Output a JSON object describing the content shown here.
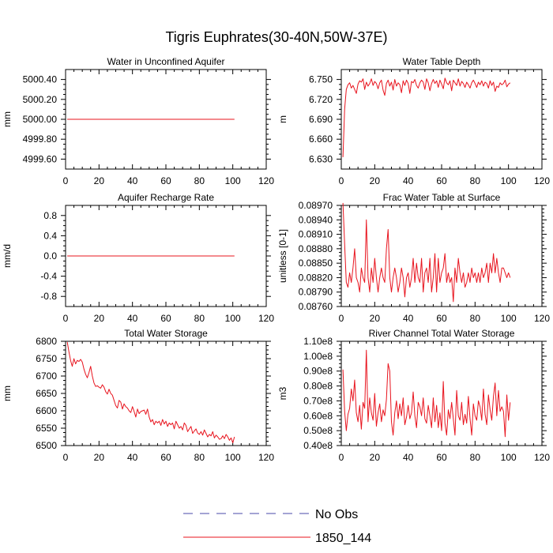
{
  "figure": {
    "title": "Tigris Euphrates(30-40N,50W-37E)"
  },
  "legend": {
    "entries": [
      {
        "label": "No Obs",
        "color": "#4a4aa8",
        "style": "dashed"
      },
      {
        "label": "1850_144",
        "color": "#e8141e",
        "style": "solid"
      }
    ]
  },
  "chart_data": [
    {
      "type": "line",
      "title": "Water in Unconfined Aquifer",
      "ylabel": "mm",
      "xlim": [
        0,
        120
      ],
      "xticks": [
        "0",
        "20",
        "40",
        "60",
        "80",
        "100",
        "120"
      ],
      "ylim": [
        4999.5,
        5000.5
      ],
      "yticks": [
        4999.6,
        4999.8,
        5000.0,
        5000.2,
        5000.4
      ],
      "ytick_labels": [
        "4999.60",
        "4999.80",
        "5000.00",
        "5000.20",
        "5000.40"
      ],
      "series": [
        {
          "x_start": 1,
          "values": [
            5000,
            5000,
            5000,
            5000,
            5000,
            5000,
            5000,
            5000,
            5000,
            5000,
            5000,
            5000,
            5000,
            5000,
            5000,
            5000,
            5000,
            5000,
            5000,
            5000,
            5000,
            5000,
            5000,
            5000,
            5000,
            5000,
            5000,
            5000,
            5000,
            5000,
            5000,
            5000,
            5000,
            5000,
            5000,
            5000,
            5000,
            5000,
            5000,
            5000,
            5000,
            5000,
            5000,
            5000,
            5000,
            5000,
            5000,
            5000,
            5000,
            5000,
            5000,
            5000,
            5000,
            5000,
            5000,
            5000,
            5000,
            5000,
            5000,
            5000,
            5000,
            5000,
            5000,
            5000,
            5000,
            5000,
            5000,
            5000,
            5000,
            5000,
            5000,
            5000,
            5000,
            5000,
            5000,
            5000,
            5000,
            5000,
            5000,
            5000,
            5000,
            5000,
            5000,
            5000,
            5000,
            5000,
            5000,
            5000,
            5000,
            5000,
            5000,
            5000,
            5000,
            5000,
            5000,
            5000,
            5000,
            5000,
            5000,
            5000,
            5000
          ]
        }
      ]
    },
    {
      "type": "line",
      "title": "Water Table Depth",
      "ylabel": "m",
      "xlim": [
        0,
        120
      ],
      "xticks": [
        "0",
        "20",
        "40",
        "60",
        "80",
        "100",
        "120"
      ],
      "ylim": [
        6.615,
        6.765
      ],
      "yticks": [
        6.63,
        6.66,
        6.69,
        6.72,
        6.75
      ],
      "ytick_labels": [
        "6.630",
        "6.660",
        "6.690",
        "6.720",
        "6.750"
      ],
      "series": [
        {
          "x_start": 1,
          "values": [
            6.633,
            6.705,
            6.735,
            6.742,
            6.745,
            6.737,
            6.741,
            6.735,
            6.729,
            6.743,
            6.748,
            6.746,
            6.751,
            6.735,
            6.746,
            6.74,
            6.744,
            6.751,
            6.741,
            6.747,
            6.744,
            6.736,
            6.745,
            6.749,
            6.734,
            6.726,
            6.744,
            6.749,
            6.74,
            6.746,
            6.734,
            6.75,
            6.74,
            6.745,
            6.742,
            6.73,
            6.748,
            6.741,
            6.749,
            6.744,
            6.729,
            6.747,
            6.745,
            6.75,
            6.741,
            6.737,
            6.745,
            6.749,
            6.746,
            6.735,
            6.751,
            6.745,
            6.733,
            6.744,
            6.75,
            6.744,
            6.748,
            6.738,
            6.749,
            6.743,
            6.736,
            6.752,
            6.745,
            6.742,
            6.748,
            6.733,
            6.749,
            6.745,
            6.741,
            6.751,
            6.74,
            6.747,
            6.744,
            6.738,
            6.746,
            6.742,
            6.737,
            6.745,
            6.749,
            6.744,
            6.738,
            6.746,
            6.742,
            6.748,
            6.74,
            6.746,
            6.744,
            6.737,
            6.748,
            6.741,
            6.746,
            6.732,
            6.74,
            6.738,
            6.745,
            6.742,
            6.744,
            6.749,
            6.739,
            6.743,
            6.745
          ]
        }
      ]
    },
    {
      "type": "line",
      "title": "Aquifer Recharge Rate",
      "ylabel": "mm/d",
      "xlim": [
        0,
        120
      ],
      "xticks": [
        "0",
        "20",
        "40",
        "60",
        "80",
        "100",
        "120"
      ],
      "ylim": [
        -1.0,
        1.0
      ],
      "yticks": [
        -0.8,
        -0.4,
        0.0,
        0.4,
        0.8
      ],
      "ytick_labels": [
        "-0.8",
        "-0.4",
        "0.0",
        "0.4",
        "0.8"
      ],
      "series": [
        {
          "x_start": 1,
          "values": [
            0,
            0,
            0,
            0,
            0,
            0,
            0,
            0,
            0,
            0,
            0,
            0,
            0,
            0,
            0,
            0,
            0,
            0,
            0,
            0,
            0,
            0,
            0,
            0,
            0,
            0,
            0,
            0,
            0,
            0,
            0,
            0,
            0,
            0,
            0,
            0,
            0,
            0,
            0,
            0,
            0,
            0,
            0,
            0,
            0,
            0,
            0,
            0,
            0,
            0,
            0,
            0,
            0,
            0,
            0,
            0,
            0,
            0,
            0,
            0,
            0,
            0,
            0,
            0,
            0,
            0,
            0,
            0,
            0,
            0,
            0,
            0,
            0,
            0,
            0,
            0,
            0,
            0,
            0,
            0,
            0,
            0,
            0,
            0,
            0,
            0,
            0,
            0,
            0,
            0,
            0,
            0,
            0,
            0,
            0,
            0,
            0,
            0,
            0,
            0,
            0
          ]
        }
      ]
    },
    {
      "type": "line",
      "title": "Frac Water Table at Surface",
      "ylabel": "unitless [0-1]",
      "xlim": [
        0,
        120
      ],
      "xticks": [
        "0",
        "20",
        "40",
        "60",
        "80",
        "100",
        "120"
      ],
      "ylim": [
        0.0876,
        0.0897
      ],
      "yticks": [
        0.0876,
        0.0879,
        0.0882,
        0.0885,
        0.0888,
        0.0891,
        0.0894,
        0.0897
      ],
      "ytick_labels": [
        "0.08760",
        "0.08790",
        "0.08820",
        "0.08850",
        "0.08880",
        "0.08910",
        "0.08940",
        "0.08970"
      ],
      "series": [
        {
          "x_start": 1,
          "values": [
            0.08975,
            0.0889,
            0.0881,
            0.088,
            0.0883,
            0.0881,
            0.0884,
            0.0888,
            0.0882,
            0.0881,
            0.0879,
            0.0884,
            0.0882,
            0.0881,
            0.0894,
            0.0882,
            0.0879,
            0.0884,
            0.0881,
            0.0886,
            0.0882,
            0.0879,
            0.0882,
            0.0884,
            0.0882,
            0.0881,
            0.0888,
            0.0892,
            0.0882,
            0.0879,
            0.0882,
            0.0884,
            0.0882,
            0.0879,
            0.0881,
            0.0884,
            0.0882,
            0.0878,
            0.0882,
            0.0883,
            0.088,
            0.0882,
            0.0886,
            0.0881,
            0.0885,
            0.0882,
            0.0881,
            0.0886,
            0.0879,
            0.0883,
            0.0884,
            0.0881,
            0.0886,
            0.0879,
            0.0882,
            0.0887,
            0.0879,
            0.0886,
            0.0881,
            0.0883,
            0.0884,
            0.0887,
            0.0881,
            0.0883,
            0.0881,
            0.0882,
            0.0877,
            0.0884,
            0.0881,
            0.0886,
            0.0883,
            0.0881,
            0.0883,
            0.088,
            0.0881,
            0.0883,
            0.0881,
            0.0884,
            0.0882,
            0.0883,
            0.0881,
            0.0883,
            0.0881,
            0.0884,
            0.0882,
            0.0883,
            0.0885,
            0.0881,
            0.0885,
            0.0883,
            0.0887,
            0.0883,
            0.0886,
            0.0883,
            0.0881,
            0.0884,
            0.0884,
            0.0883,
            0.0882,
            0.0883,
            0.0882
          ]
        }
      ]
    },
    {
      "type": "line",
      "title": "Total Water Storage",
      "ylabel": "mm",
      "xlim": [
        0,
        120
      ],
      "xticks": [
        "0",
        "20",
        "40",
        "60",
        "80",
        "100",
        "120"
      ],
      "ylim": [
        6500,
        6800
      ],
      "yticks": [
        6500,
        6550,
        6600,
        6650,
        6700,
        6750,
        6800
      ],
      "ytick_labels": [
        "6500",
        "6550",
        "6600",
        "6650",
        "6700",
        "6750",
        "6800"
      ],
      "series": [
        {
          "x_start": 1,
          "values": [
            6798,
            6770,
            6745,
            6728,
            6750,
            6735,
            6745,
            6742,
            6748,
            6740,
            6720,
            6705,
            6695,
            6710,
            6728,
            6700,
            6680,
            6670,
            6672,
            6668,
            6665,
            6675,
            6668,
            6655,
            6648,
            6662,
            6650,
            6645,
            6630,
            6615,
            6608,
            6630,
            6625,
            6605,
            6620,
            6612,
            6608,
            6600,
            6595,
            6612,
            6598,
            6582,
            6605,
            6592,
            6598,
            6600,
            6602,
            6590,
            6605,
            6582,
            6568,
            6575,
            6560,
            6570,
            6565,
            6570,
            6558,
            6575,
            6562,
            6570,
            6555,
            6565,
            6560,
            6565,
            6548,
            6570,
            6560,
            6550,
            6555,
            6545,
            6565,
            6558,
            6540,
            6548,
            6555,
            6535,
            6542,
            6548,
            6536,
            6532,
            6540,
            6530,
            6545,
            6535,
            6525,
            6532,
            6528,
            6540,
            6522,
            6530,
            6525,
            6518,
            6520,
            6528,
            6520,
            6532,
            6525,
            6515,
            6522,
            6508,
            6525
          ]
        }
      ]
    },
    {
      "type": "line",
      "title": "River Channel Total Water Storage",
      "ylabel": "m3",
      "xlim": [
        0,
        120
      ],
      "xticks": [
        "0",
        "20",
        "40",
        "60",
        "80",
        "100",
        "120"
      ],
      "ylim": [
        40000000,
        110000000
      ],
      "yticks": [
        40000000,
        50000000,
        60000000,
        70000000,
        80000000,
        90000000,
        100000000,
        110000000
      ],
      "ytick_labels": [
        "0.40e8",
        "0.50e8",
        "0.60e8",
        "0.70e8",
        "0.80e8",
        "0.90e8",
        "1.00e8",
        "1.10e8"
      ],
      "series": [
        {
          "x_start": 1,
          "values": [
            91000000,
            63000000,
            50000000,
            61000000,
            65000000,
            78000000,
            70000000,
            84000000,
            62000000,
            56000000,
            67000000,
            51000000,
            69000000,
            65000000,
            104000000,
            56000000,
            72000000,
            62000000,
            57000000,
            75000000,
            53000000,
            62000000,
            68000000,
            56000000,
            64000000,
            60000000,
            71000000,
            95000000,
            90000000,
            56000000,
            47000000,
            62000000,
            70000000,
            58000000,
            68000000,
            60000000,
            72000000,
            54000000,
            59000000,
            67000000,
            58000000,
            62000000,
            76000000,
            60000000,
            52000000,
            69000000,
            66000000,
            60000000,
            72000000,
            58000000,
            55000000,
            67000000,
            60000000,
            52000000,
            72000000,
            56000000,
            67000000,
            52000000,
            62000000,
            50000000,
            83000000,
            55000000,
            47000000,
            64000000,
            58000000,
            69000000,
            58000000,
            47000000,
            77000000,
            60000000,
            57000000,
            69000000,
            54000000,
            61000000,
            55000000,
            73000000,
            58000000,
            47000000,
            68000000,
            60000000,
            57000000,
            70000000,
            66000000,
            57000000,
            78000000,
            61000000,
            54000000,
            74000000,
            64000000,
            57000000,
            73000000,
            82000000,
            60000000,
            77000000,
            63000000,
            66000000,
            63000000,
            46000000,
            74000000,
            57000000,
            69000000
          ]
        }
      ]
    }
  ]
}
